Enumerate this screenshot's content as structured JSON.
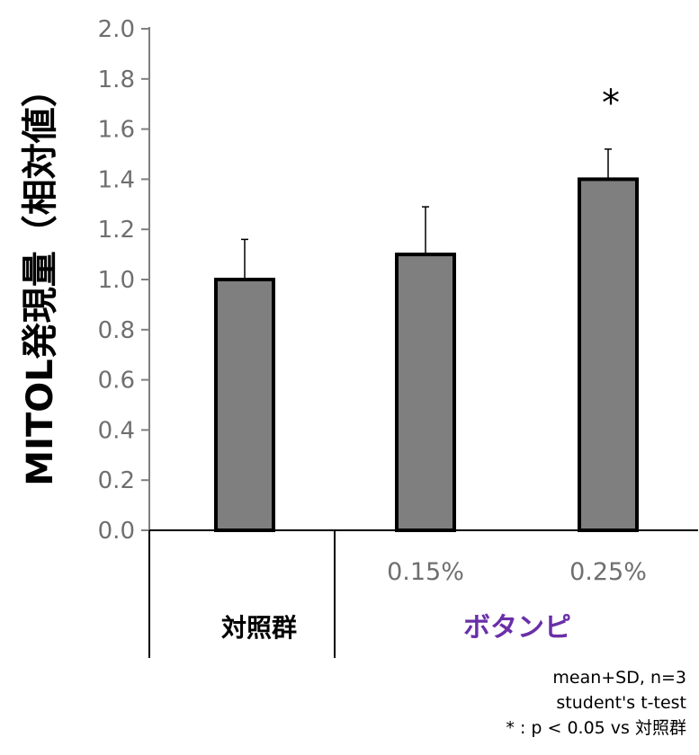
{
  "chart_data": {
    "type": "bar",
    "ylabel": "MITOL発現量（相対値）",
    "ylim": [
      0,
      2.0
    ],
    "yticks": [
      "0.0",
      "0.2",
      "0.4",
      "0.6",
      "0.8",
      "1.0",
      "1.2",
      "1.4",
      "1.6",
      "1.8",
      "2.0"
    ],
    "categories": [
      "",
      "0.15%",
      "0.25%"
    ],
    "values": [
      1.0,
      1.1,
      1.4
    ],
    "errors": [
      0.16,
      0.19,
      0.12
    ],
    "significance": [
      "",
      "",
      "*"
    ],
    "groups": [
      {
        "label": "対照群",
        "color": "#000000",
        "bars": [
          0
        ]
      },
      {
        "label": "ボタンピ",
        "color": "#6a2fa8",
        "bars": [
          1,
          2
        ]
      }
    ],
    "bar_color": "#7f7f7f",
    "grid": false
  },
  "notes": [
    "mean+SD, n=3",
    "student's  t-test",
    "* : p < 0.05 vs 対照群"
  ]
}
